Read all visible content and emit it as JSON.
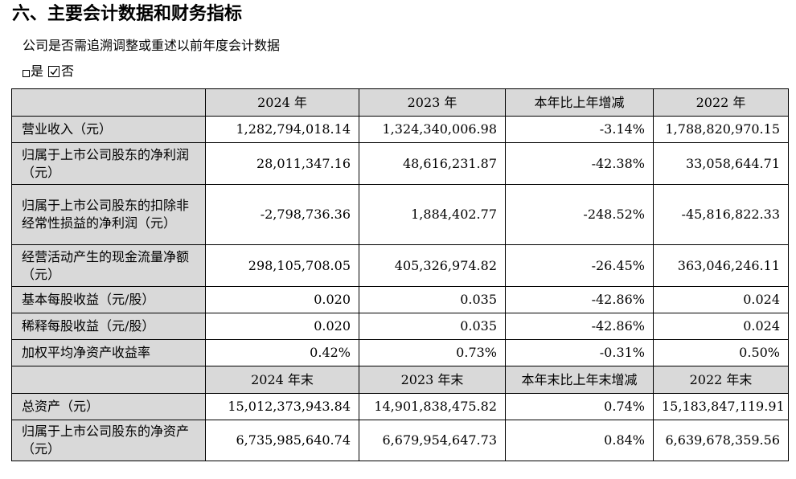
{
  "heading": "六、主要会计数据和财务指标",
  "question": "公司是否需追溯调整或重述以前年度会计数据",
  "options": {
    "yes": "是",
    "no": "否"
  },
  "headers": {
    "annual": [
      "",
      "2024 年",
      "2023 年",
      "本年比上年增减",
      "2022 年"
    ],
    "period_end": [
      "",
      "2024 年末",
      "2023 年末",
      "本年末比上年末增减",
      "2022 年末"
    ]
  },
  "rows": [
    {
      "label": "营业收入（元）",
      "v2024": "1,282,794,018.14",
      "v2023": "1,324,340,006.98",
      "change": "-3.14%",
      "v2022": "1,788,820,970.15"
    },
    {
      "label": "归属于上市公司股东的净利润（元）",
      "v2024": "28,011,347.16",
      "v2023": "48,616,231.87",
      "change": "-42.38%",
      "v2022": "33,058,644.71"
    },
    {
      "label": "归属于上市公司股东的扣除非经常性损益的净利润（元）",
      "v2024": "-2,798,736.36",
      "v2023": "1,884,402.77",
      "change": "-248.52%",
      "v2022": "-45,816,822.33"
    },
    {
      "label": "经营活动产生的现金流量净额（元）",
      "v2024": "298,105,708.05",
      "v2023": "405,326,974.82",
      "change": "-26.45%",
      "v2022": "363,046,246.11"
    },
    {
      "label": "基本每股收益（元/股）",
      "v2024": "0.020",
      "v2023": "0.035",
      "change": "-42.86%",
      "v2022": "0.024"
    },
    {
      "label": "稀释每股收益（元/股）",
      "v2024": "0.020",
      "v2023": "0.035",
      "change": "-42.86%",
      "v2022": "0.024"
    },
    {
      "label": "加权平均净资产收益率",
      "v2024": "0.42%",
      "v2023": "0.73%",
      "change": "-0.31%",
      "v2022": "0.50%"
    }
  ],
  "rows_end": [
    {
      "label": "总资产（元）",
      "v2024": "15,012,373,943.84",
      "v2023": "14,901,838,475.82",
      "change": "0.74%",
      "v2022": "15,183,847,119.91"
    },
    {
      "label": "归属于上市公司股东的净资产（元）",
      "v2024": "6,735,985,640.74",
      "v2023": "6,679,954,647.73",
      "change": "0.84%",
      "v2022": "6,639,678,359.56"
    }
  ]
}
